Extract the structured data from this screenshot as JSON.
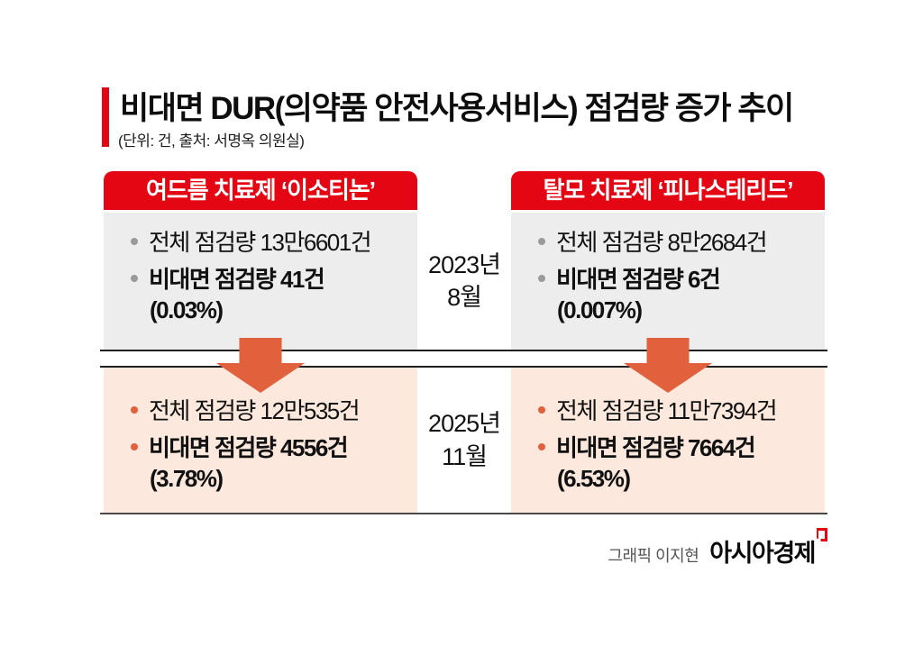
{
  "title": {
    "text": "비대면 DUR(의약품 안전사용서비스) 점검량 증가 추이",
    "unit_source": "(단위: 건, 출처: 서명옥 의원실)"
  },
  "periods": [
    {
      "year": "2023년",
      "month": "8월"
    },
    {
      "year": "2025년",
      "month": "11월"
    }
  ],
  "columns": [
    {
      "header": "여드름 치료제 ‘이소티논’",
      "p1": {
        "total": "전체 점검량 13만6601건",
        "remote": "비대면 점검량 41건",
        "pct": "(0.03%)"
      },
      "p2": {
        "total": "전체 점검량 12만535건",
        "remote": "비대면 점검량 4556건",
        "pct": "(3.78%)"
      }
    },
    {
      "header": "탈모 치료제 ‘피나스테리드’",
      "p1": {
        "total": "전체 점검량 8만2684건",
        "remote": "비대면 점검량 6건",
        "pct": "(0.007%)"
      },
      "p2": {
        "total": "전체 점검량 11만7394건",
        "remote": "비대면 점검량 7664건",
        "pct": "(6.53%)"
      }
    }
  ],
  "footer": {
    "credit": "그래픽 이지현",
    "brand": "아시아경제"
  },
  "colors": {
    "accent_red": "#e50613",
    "gray_box": "#ededed",
    "peach_box": "#fce8dc",
    "arrow_orange": "#e0613c",
    "bullet_gray": "#9a9a9a",
    "bullet_orange": "#e0613c",
    "rule_dark": "#1f1f1f",
    "rule_bottom": "#4a4a4a"
  },
  "chart_data": {
    "type": "table",
    "title": "비대면 DUR(의약품 안전사용서비스) 점검량 증가 추이",
    "unit": "건",
    "source": "서명옥 의원실",
    "columns": [
      "여드름 치료제 이소티논",
      "탈모 치료제 피나스테리드"
    ],
    "rows": [
      {
        "period": "2023년 8월",
        "isotinon": {
          "total_checks": 136601,
          "remote_checks": 41,
          "remote_share_pct": 0.03
        },
        "finasteride": {
          "total_checks": 82684,
          "remote_checks": 6,
          "remote_share_pct": 0.007
        }
      },
      {
        "period": "2025년 11월",
        "isotinon": {
          "total_checks": 120535,
          "remote_checks": 4556,
          "remote_share_pct": 3.78
        },
        "finasteride": {
          "total_checks": 117394,
          "remote_checks": 7664,
          "remote_share_pct": 6.53
        }
      }
    ]
  }
}
